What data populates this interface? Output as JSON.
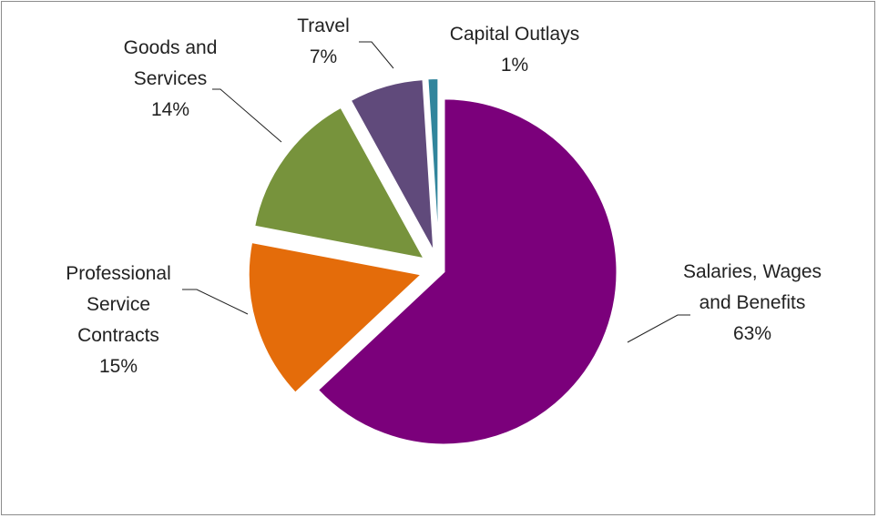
{
  "chart_data": {
    "type": "pie",
    "exploded": true,
    "start_angle_deg": 0,
    "direction": "clockwise",
    "legend": "none",
    "slices": [
      {
        "label_lines": [
          "Salaries, Wages",
          "and Benefits"
        ],
        "value": 63,
        "pct_label": "63%",
        "color": "#7b007b"
      },
      {
        "label_lines": [
          "Professional",
          "Service",
          "Contracts"
        ],
        "value": 15,
        "pct_label": "15%",
        "color": "#e46c0a"
      },
      {
        "label_lines": [
          "Goods and",
          "Services"
        ],
        "value": 14,
        "pct_label": "14%",
        "color": "#77933c"
      },
      {
        "label_lines": [
          "Travel"
        ],
        "value": 7,
        "pct_label": "7%",
        "color": "#604a7b"
      },
      {
        "label_lines": [
          "Capital Outlays"
        ],
        "value": 1,
        "pct_label": "1%",
        "color": "#31859c"
      }
    ]
  }
}
